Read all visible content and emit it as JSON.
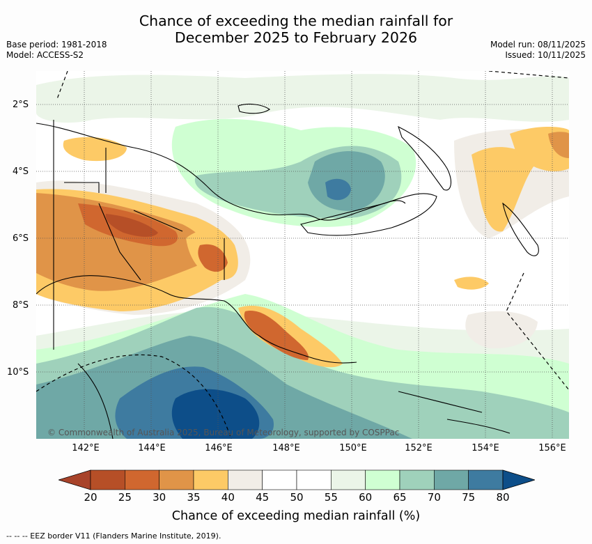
{
  "header": {
    "title_line1": "Chance of exceeding the median rainfall for",
    "title_line2": "December 2025 to February 2026",
    "base_period": "Base period: 1981-2018",
    "model": "Model: ACCESS-S2",
    "model_run": "Model run: 08/11/2025",
    "issued": "Issued: 10/11/2025"
  },
  "map": {
    "lat_labels": [
      "2°S",
      "4°S",
      "6°S",
      "8°S",
      "10°S"
    ],
    "lon_labels": [
      "142°E",
      "144°E",
      "146°E",
      "148°E",
      "150°E",
      "152°E",
      "154°E",
      "156°E"
    ],
    "copyright": "© Commonwealth of Australia 2025, Bureau of Meteorology, supported by COSPPac"
  },
  "colorbar": {
    "ticks": [
      "20",
      "25",
      "30",
      "35",
      "40",
      "45",
      "50",
      "55",
      "60",
      "65",
      "70",
      "75",
      "80"
    ],
    "colors": [
      "#a8432a",
      "#b64f27",
      "#d0672f",
      "#e09448",
      "#fdca66",
      "#f1ede7",
      "#ffffff",
      "#ffffff",
      "#ebf5e8",
      "#cfffd2",
      "#9fd1bb",
      "#6fa8a6",
      "#3e7ba0",
      "#0d4e89"
    ],
    "title": "Chance of exceeding median rainfall (%)"
  },
  "legend": {
    "eez": "-- -- -- EEZ border V11 (Flanders Marine Institute, 2019)."
  }
}
